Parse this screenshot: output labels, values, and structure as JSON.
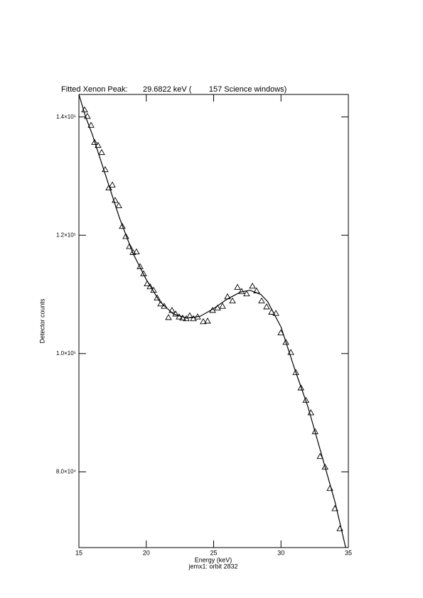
{
  "chart_data": {
    "type": "scatter",
    "title": "Fitted Xenon Peak:       29.6822 keV (        157 Science windows)",
    "x_label": "Energy (keV)",
    "annotation": "jemx1: orbit 2832",
    "y_label": "Detector counts",
    "xlim": [
      15,
      35
    ],
    "xticks": [
      15,
      20,
      25,
      30,
      35
    ],
    "ylim": [
      67200,
      143800
    ],
    "yticks": [
      {
        "value": 80000,
        "label": "8.0×10⁴"
      },
      {
        "value": 100000,
        "label": "1.0×10⁵"
      },
      {
        "value": 120000,
        "label": "1.2×10⁵"
      },
      {
        "value": 140000,
        "label": "1.4×10⁵"
      }
    ],
    "series": [
      {
        "type": "scatter",
        "marker": "triangle",
        "color": "#000000",
        "x": [
          15.42,
          15.63,
          15.9,
          16.16,
          16.42,
          16.69,
          16.95,
          17.22,
          17.48,
          17.69,
          17.96,
          18.22,
          18.48,
          18.75,
          19.01,
          19.27,
          19.54,
          19.8,
          20.07,
          20.28,
          20.54,
          20.81,
          21.07,
          21.33,
          21.65,
          21.91,
          22.18,
          22.44,
          22.7,
          22.97,
          23.23,
          23.5,
          23.81,
          24.23,
          24.55,
          24.92,
          25.29,
          25.66,
          26.03,
          26.4,
          26.77,
          27.08,
          27.45,
          27.88,
          28.19,
          28.56,
          28.93,
          29.3,
          29.62,
          29.99,
          30.36,
          30.73,
          31.1,
          31.48,
          31.85,
          32.22,
          32.53,
          32.9,
          33.27,
          33.63,
          34.0,
          34.37
        ],
        "values": [
          141200,
          140100,
          138600,
          135700,
          135200,
          134000,
          131100,
          128000,
          128500,
          125900,
          125000,
          121500,
          119800,
          118100,
          117100,
          117200,
          114700,
          113500,
          111800,
          111300,
          110700,
          109400,
          108400,
          108000,
          106100,
          107300,
          106700,
          106200,
          106000,
          105900,
          106400,
          105900,
          106200,
          105400,
          105500,
          107300,
          107700,
          108000,
          109600,
          108900,
          111200,
          110500,
          110100,
          111400,
          110600,
          108900,
          107900,
          107000,
          106800,
          103500,
          101900,
          100200,
          96800,
          94200,
          92100,
          90000,
          86800,
          82600,
          80800,
          77200,
          73800,
          70400
        ]
      },
      {
        "type": "line",
        "color": "#000000",
        "x": [
          15,
          15.5,
          16,
          17,
          18,
          19,
          20,
          21,
          22,
          23,
          24,
          25,
          26,
          27,
          27.7,
          28.5,
          29,
          30,
          31,
          32,
          33,
          34,
          34.8
        ],
        "values": [
          143800,
          140000,
          137000,
          130000,
          123000,
          117000,
          112500,
          108800,
          106700,
          106000,
          106300,
          107600,
          109200,
          110400,
          110700,
          110000,
          108800,
          104500,
          97500,
          91000,
          83000,
          75000,
          67200
        ]
      }
    ]
  }
}
